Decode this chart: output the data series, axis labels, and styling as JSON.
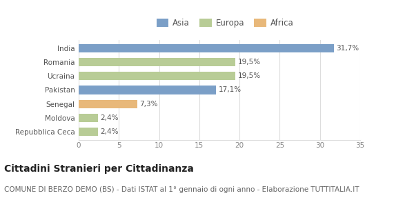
{
  "categories": [
    "India",
    "Romania",
    "Ucraina",
    "Pakistan",
    "Senegal",
    "Moldova",
    "Repubblica Ceca"
  ],
  "values": [
    31.7,
    19.5,
    19.5,
    17.1,
    7.3,
    2.4,
    2.4
  ],
  "labels": [
    "31,7%",
    "19,5%",
    "19,5%",
    "17,1%",
    "7,3%",
    "2,4%",
    "2,4%"
  ],
  "colors": [
    "#7b9fc7",
    "#b8cc96",
    "#b8cc96",
    "#7b9fc7",
    "#e8b87a",
    "#b8cc96",
    "#b8cc96"
  ],
  "legend": [
    {
      "label": "Asia",
      "color": "#7b9fc7"
    },
    {
      "label": "Europa",
      "color": "#b8cc96"
    },
    {
      "label": "Africa",
      "color": "#e8b87a"
    }
  ],
  "xlim": [
    0,
    35
  ],
  "xticks": [
    0,
    5,
    10,
    15,
    20,
    25,
    30,
    35
  ],
  "title": "Cittadini Stranieri per Cittadinanza",
  "subtitle": "COMUNE DI BERZO DEMO (BS) - Dati ISTAT al 1° gennaio di ogni anno - Elaborazione TUTTITALIA.IT",
  "background_color": "#ffffff",
  "grid_color": "#dddddd",
  "bar_height": 0.6,
  "title_fontsize": 10,
  "subtitle_fontsize": 7.5,
  "label_fontsize": 7.5,
  "tick_fontsize": 7.5,
  "legend_fontsize": 8.5,
  "ytick_fontsize": 7.5
}
